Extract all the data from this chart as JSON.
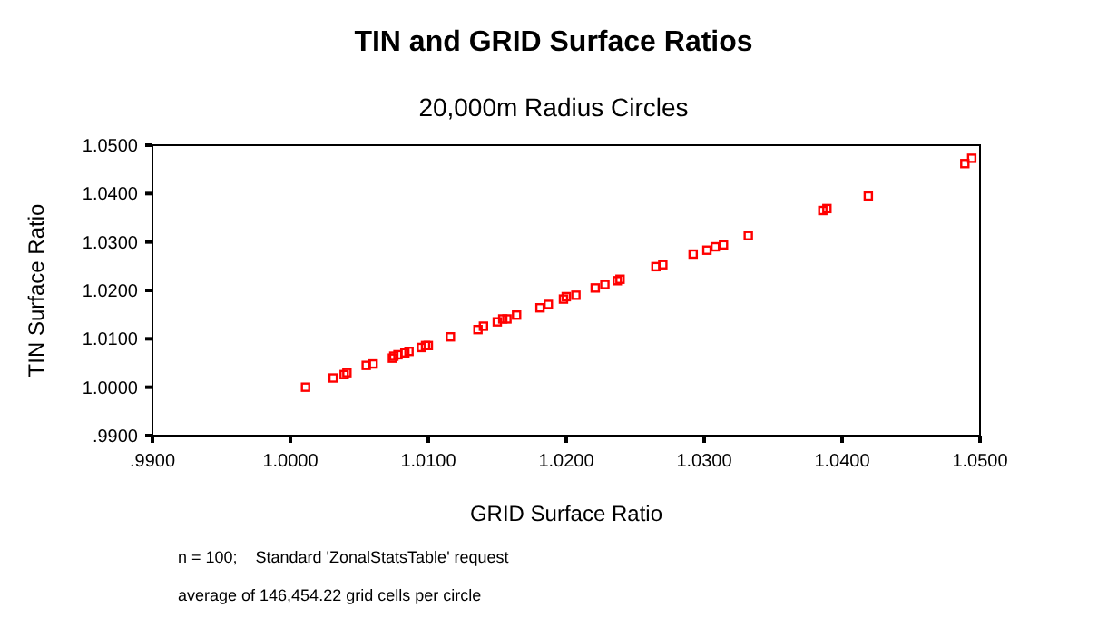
{
  "chart_data": {
    "type": "scatter",
    "title": "TIN and GRID Surface Ratios",
    "subtitle": "20,000m Radius Circles",
    "xlabel": "GRID Surface Ratio",
    "ylabel": "TIN Surface Ratio",
    "annotations": [
      "n = 100;    Standard 'ZonalStatsTable' request",
      "average of 146,454.22 grid cells per circle"
    ],
    "marker": "square",
    "grid": false,
    "xlim": [
      0.99,
      1.05
    ],
    "ylim": [
      0.99,
      1.05
    ],
    "xticks": [
      {
        "value": 0.99,
        "label": ".9900"
      },
      {
        "value": 1.0,
        "label": "1.0000"
      },
      {
        "value": 1.01,
        "label": "1.0100"
      },
      {
        "value": 1.02,
        "label": "1.0200"
      },
      {
        "value": 1.03,
        "label": "1.0300"
      },
      {
        "value": 1.04,
        "label": "1.0400"
      },
      {
        "value": 1.05,
        "label": "1.0500"
      }
    ],
    "yticks": [
      {
        "value": 0.99,
        "label": ".9900"
      },
      {
        "value": 1.0,
        "label": "1.0000"
      },
      {
        "value": 1.01,
        "label": "1.0100"
      },
      {
        "value": 1.02,
        "label": "1.0200"
      },
      {
        "value": 1.03,
        "label": "1.0300"
      },
      {
        "value": 1.04,
        "label": "1.0400"
      },
      {
        "value": 1.05,
        "label": "1.0500"
      }
    ],
    "series": [
      {
        "color": "#ff0000",
        "x": [
          1.0011,
          1.0031,
          1.0039,
          1.0041,
          1.0055,
          1.006,
          1.0074,
          1.0075,
          1.0078,
          1.0083,
          1.0086,
          1.0095,
          1.0098,
          1.01,
          1.0116,
          1.0136,
          1.014,
          1.015,
          1.0154,
          1.0157,
          1.0164,
          1.0181,
          1.0187,
          1.0198,
          1.02,
          1.0207,
          1.0221,
          1.0228,
          1.0237,
          1.0239,
          1.0265,
          1.027,
          1.0292,
          1.0302,
          1.0308,
          1.0314,
          1.0332,
          1.0386,
          1.0389,
          1.0419,
          1.0489,
          1.0494
        ],
        "values": [
          1.0,
          1.0019,
          1.0026,
          1.003,
          1.0045,
          1.0048,
          1.006,
          1.0064,
          1.0067,
          1.0071,
          1.0074,
          1.0082,
          1.0086,
          1.0086,
          1.0104,
          1.0119,
          1.0126,
          1.0135,
          1.0141,
          1.0141,
          1.0149,
          1.0164,
          1.0171,
          1.0182,
          1.0187,
          1.019,
          1.0205,
          1.0212,
          1.022,
          1.0223,
          1.0249,
          1.0253,
          1.0275,
          1.0283,
          1.029,
          1.0294,
          1.0313,
          1.0365,
          1.0369,
          1.0395,
          1.0462,
          1.0473
        ]
      }
    ]
  }
}
